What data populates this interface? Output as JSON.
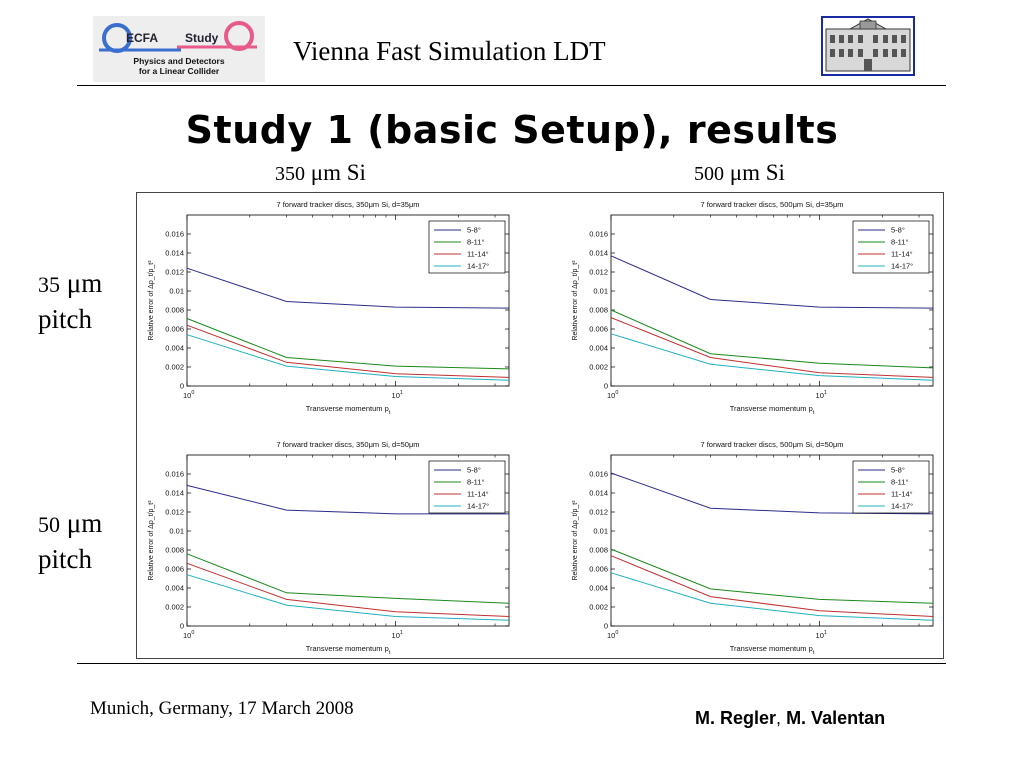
{
  "header": {
    "logo": {
      "name": "ECFA",
      "word": "Study",
      "line1": "Physics and Detectors",
      "line2": "for a Linear Collider"
    },
    "title": "Vienna Fast Simulation LDT"
  },
  "slide": {
    "title": "Study 1 (basic Setup), results",
    "columns": [
      {
        "num": "350",
        "unit": "μm Si"
      },
      {
        "num": "500",
        "unit": "μm Si"
      }
    ],
    "rows": [
      {
        "num": "35",
        "unit": "μm",
        "word": "pitch"
      },
      {
        "num": "50",
        "unit": "μm",
        "word": "pitch"
      }
    ]
  },
  "footer": {
    "left": "Munich, Germany, 17 March 2008",
    "author1": "M. Regler",
    "sep": ",",
    "author2": "M. Valentan"
  },
  "chart_data": [
    {
      "type": "line",
      "title": "7 forward tracker discs, 350μm Si, d=35μm",
      "xlabel": "Transverse momentum p_t",
      "ylabel": "Relative error of Δp_t/p_t²",
      "x_scale": "log",
      "xlim": [
        1,
        35
      ],
      "ylim": [
        0,
        0.018
      ],
      "yticks": [
        "0",
        "0.002",
        "0.004",
        "0.006",
        "0.008",
        "0.01",
        "0.012",
        "0.014",
        "0.016"
      ],
      "legend_position": "top-right",
      "x": [
        1,
        3,
        10,
        35
      ],
      "series": [
        {
          "name": "5-8°",
          "color": "#2b2b8c",
          "values": [
            0.0124,
            0.0089,
            0.0083,
            0.0082
          ]
        },
        {
          "name": "8-11°",
          "color": "#1a8a1a",
          "values": [
            0.0071,
            0.003,
            0.0021,
            0.0018
          ]
        },
        {
          "name": "11-14°",
          "color": "#c03030",
          "values": [
            0.0064,
            0.0025,
            0.0013,
            0.0009
          ]
        },
        {
          "name": "14-17°",
          "color": "#20b0c0",
          "values": [
            0.0054,
            0.0021,
            0.001,
            0.0006
          ]
        }
      ]
    },
    {
      "type": "line",
      "title": "7 forward tracker discs, 500μm Si, d=35μm",
      "xlabel": "Transverse momentum p_t",
      "ylabel": "Relative error of Δp_t/p_t²",
      "x_scale": "log",
      "xlim": [
        1,
        35
      ],
      "ylim": [
        0,
        0.018
      ],
      "yticks": [
        "0",
        "0.002",
        "0.004",
        "0.006",
        "0.008",
        "0.01",
        "0.012",
        "0.014",
        "0.016"
      ],
      "legend_position": "top-right",
      "x": [
        1,
        3,
        10,
        35
      ],
      "series": [
        {
          "name": "5-8°",
          "color": "#2b2b8c",
          "values": [
            0.0137,
            0.0091,
            0.0083,
            0.0082
          ]
        },
        {
          "name": "8-11°",
          "color": "#1a8a1a",
          "values": [
            0.008,
            0.0034,
            0.0024,
            0.0019
          ]
        },
        {
          "name": "11-14°",
          "color": "#c03030",
          "values": [
            0.0072,
            0.003,
            0.0014,
            0.0009
          ]
        },
        {
          "name": "14-17°",
          "color": "#20b0c0",
          "values": [
            0.0055,
            0.0023,
            0.0011,
            0.0006
          ]
        }
      ]
    },
    {
      "type": "line",
      "title": "7 forward tracker discs, 350μm Si, d=50μm",
      "xlabel": "Transverse momentum p_t",
      "ylabel": "Relative error of Δp_t/p_t²",
      "x_scale": "log",
      "xlim": [
        1,
        35
      ],
      "ylim": [
        0,
        0.018
      ],
      "yticks": [
        "0",
        "0.002",
        "0.004",
        "0.006",
        "0.008",
        "0.01",
        "0.012",
        "0.014",
        "0.016"
      ],
      "legend_position": "top-right",
      "x": [
        1,
        3,
        10,
        35
      ],
      "series": [
        {
          "name": "5-8°",
          "color": "#2b2b8c",
          "values": [
            0.0148,
            0.0122,
            0.0118,
            0.0118
          ]
        },
        {
          "name": "8-11°",
          "color": "#1a8a1a",
          "values": [
            0.0076,
            0.0035,
            0.0029,
            0.0024
          ]
        },
        {
          "name": "11-14°",
          "color": "#c03030",
          "values": [
            0.0066,
            0.0028,
            0.0015,
            0.001
          ]
        },
        {
          "name": "14-17°",
          "color": "#20b0c0",
          "values": [
            0.0054,
            0.0022,
            0.001,
            0.0006
          ]
        }
      ]
    },
    {
      "type": "line",
      "title": "7 forward tracker discs, 500μm Si, d=50μm",
      "xlabel": "Transverse momentum p_t",
      "ylabel": "Relative error of Δp_t/p_t²",
      "x_scale": "log",
      "xlim": [
        1,
        35
      ],
      "ylim": [
        0,
        0.018
      ],
      "yticks": [
        "0",
        "0.002",
        "0.004",
        "0.006",
        "0.008",
        "0.01",
        "0.012",
        "0.014",
        "0.016"
      ],
      "legend_position": "top-right",
      "x": [
        1,
        3,
        10,
        35
      ],
      "series": [
        {
          "name": "5-8°",
          "color": "#2b2b8c",
          "values": [
            0.0161,
            0.0124,
            0.0119,
            0.0118
          ]
        },
        {
          "name": "8-11°",
          "color": "#1a8a1a",
          "values": [
            0.0081,
            0.0039,
            0.0028,
            0.0024
          ]
        },
        {
          "name": "11-14°",
          "color": "#c03030",
          "values": [
            0.0074,
            0.0031,
            0.0016,
            0.001
          ]
        },
        {
          "name": "14-17°",
          "color": "#20b0c0",
          "values": [
            0.0056,
            0.0024,
            0.0011,
            0.0006
          ]
        }
      ]
    }
  ]
}
